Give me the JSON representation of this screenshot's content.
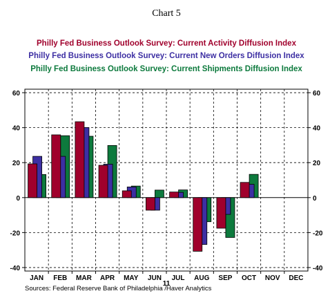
{
  "chart_data": {
    "type": "bar",
    "title": "Chart 5",
    "series": [
      {
        "name": "Philly Fed Business Outlook Survey: Current Activity Diffusion Index",
        "color": "#a0002c",
        "values": [
          19.3,
          35.9,
          43.4,
          18.5,
          3.9,
          -7.2,
          3.2,
          -30.7,
          -17.5,
          8.7,
          null,
          null
        ]
      },
      {
        "name": "Philly Fed Business Outlook Survey: Current New Orders Diffusion Index",
        "color": "#3d2fa3",
        "values": [
          23.6,
          23.6,
          40.1,
          19.1,
          6.1,
          -7.2,
          3.0,
          -26.8,
          -9.6,
          7.6,
          null,
          null
        ]
      },
      {
        "name": "Philly Fed Business Outlook Survey: Current Shipments Diffusion Index",
        "color": "#0d7a3d",
        "values": [
          13.2,
          35.4,
          35.1,
          29.8,
          6.6,
          4.3,
          4.4,
          -13.8,
          -22.8,
          13.3,
          null,
          null
        ]
      }
    ],
    "categories": [
      "JAN",
      "FEB",
      "MAR",
      "APR",
      "MAY",
      "JUN",
      "JUL",
      "AUG",
      "SEP",
      "OCT",
      "NOV",
      "DEC"
    ],
    "year_label": "11",
    "ylim": [
      -42,
      62
    ],
    "yticks": [
      60,
      40,
      20,
      0,
      -20,
      -40
    ],
    "grid": true,
    "legend_position": "top",
    "source": "Sources:  Federal Reserve Bank of Philadelphia /Haver Analytics",
    "colors": {
      "activity": "#a0002c",
      "new_orders": "#3d2fa3",
      "shipments": "#0d7a3d"
    }
  }
}
